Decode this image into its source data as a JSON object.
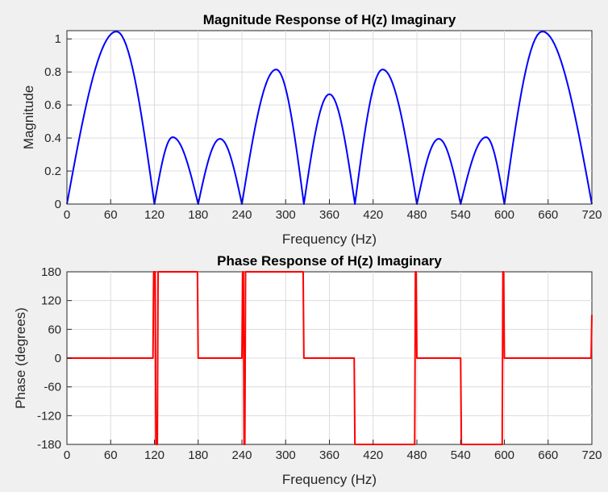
{
  "colors": {
    "magnitude_line": "#0000ff",
    "phase_line": "#ff0000",
    "figure_background": "#f0f0f0",
    "axes_background": "#ffffff"
  },
  "chart_data": [
    {
      "type": "line",
      "title": "Magnitude Response of H(z) Imaginary",
      "xlabel": "Frequency (Hz)",
      "ylabel": "Magnitude",
      "xlim": [
        0,
        720
      ],
      "ylim": [
        0,
        1.05
      ],
      "grid": true,
      "x_ticks": [
        0,
        60,
        120,
        180,
        240,
        300,
        360,
        420,
        480,
        540,
        600,
        660,
        720
      ],
      "x_tick_labels": [
        "0",
        "60",
        "120",
        "180",
        "240",
        "300",
        "360",
        "420",
        "480",
        "540",
        "600",
        "660",
        "720"
      ],
      "y_ticks": [
        0,
        0.2,
        0.4,
        0.6,
        0.8,
        1
      ],
      "y_tick_labels": [
        "0",
        "0.2",
        "0.4",
        "0.6",
        "0.8",
        "1"
      ],
      "series": [
        {
          "color": "#0000ff",
          "x": [
            0,
            68,
            120,
            145,
            180,
            210,
            240,
            287,
            325,
            360,
            395,
            433,
            480,
            510,
            540,
            575,
            600,
            652,
            720
          ],
          "y": [
            0,
            1.045,
            0,
            0.405,
            0,
            0.395,
            0,
            0.815,
            0,
            0.665,
            0,
            0.815,
            0,
            0.395,
            0,
            0.405,
            0,
            1.045,
            0
          ]
        }
      ]
    },
    {
      "type": "line",
      "title": "Phase Response of H(z) Imaginary",
      "xlabel": "Frequency (Hz)",
      "ylabel": "Phase (degrees)",
      "xlim": [
        0,
        720
      ],
      "ylim": [
        -180,
        180
      ],
      "grid": true,
      "x_ticks": [
        0,
        60,
        120,
        180,
        240,
        300,
        360,
        420,
        480,
        540,
        600,
        660,
        720
      ],
      "x_tick_labels": [
        "0",
        "60",
        "120",
        "180",
        "240",
        "300",
        "360",
        "420",
        "480",
        "540",
        "600",
        "660",
        "720"
      ],
      "y_ticks": [
        180,
        120,
        60,
        0,
        -60,
        -120,
        -180
      ],
      "y_tick_labels": [
        "180",
        "120",
        "60",
        "0",
        "-60",
        "-120",
        "-180"
      ],
      "series": [
        {
          "color": "#ff0000",
          "x": [
            0,
            118,
            119,
            121,
            122,
            124,
            125,
            179,
            180,
            240,
            241,
            242,
            243,
            244,
            245,
            324,
            325,
            394,
            395,
            477,
            478,
            479,
            480,
            481,
            540,
            541,
            596,
            597,
            598,
            599,
            600,
            601,
            719,
            720
          ],
          "y": [
            0,
            0,
            180,
            180,
            -180,
            -180,
            180,
            180,
            0,
            0,
            180,
            180,
            -180,
            -180,
            180,
            180,
            0,
            0,
            -180,
            -180,
            180,
            180,
            0,
            0,
            0,
            -180,
            -180,
            -180,
            180,
            180,
            0,
            0,
            0,
            90
          ]
        }
      ]
    }
  ]
}
